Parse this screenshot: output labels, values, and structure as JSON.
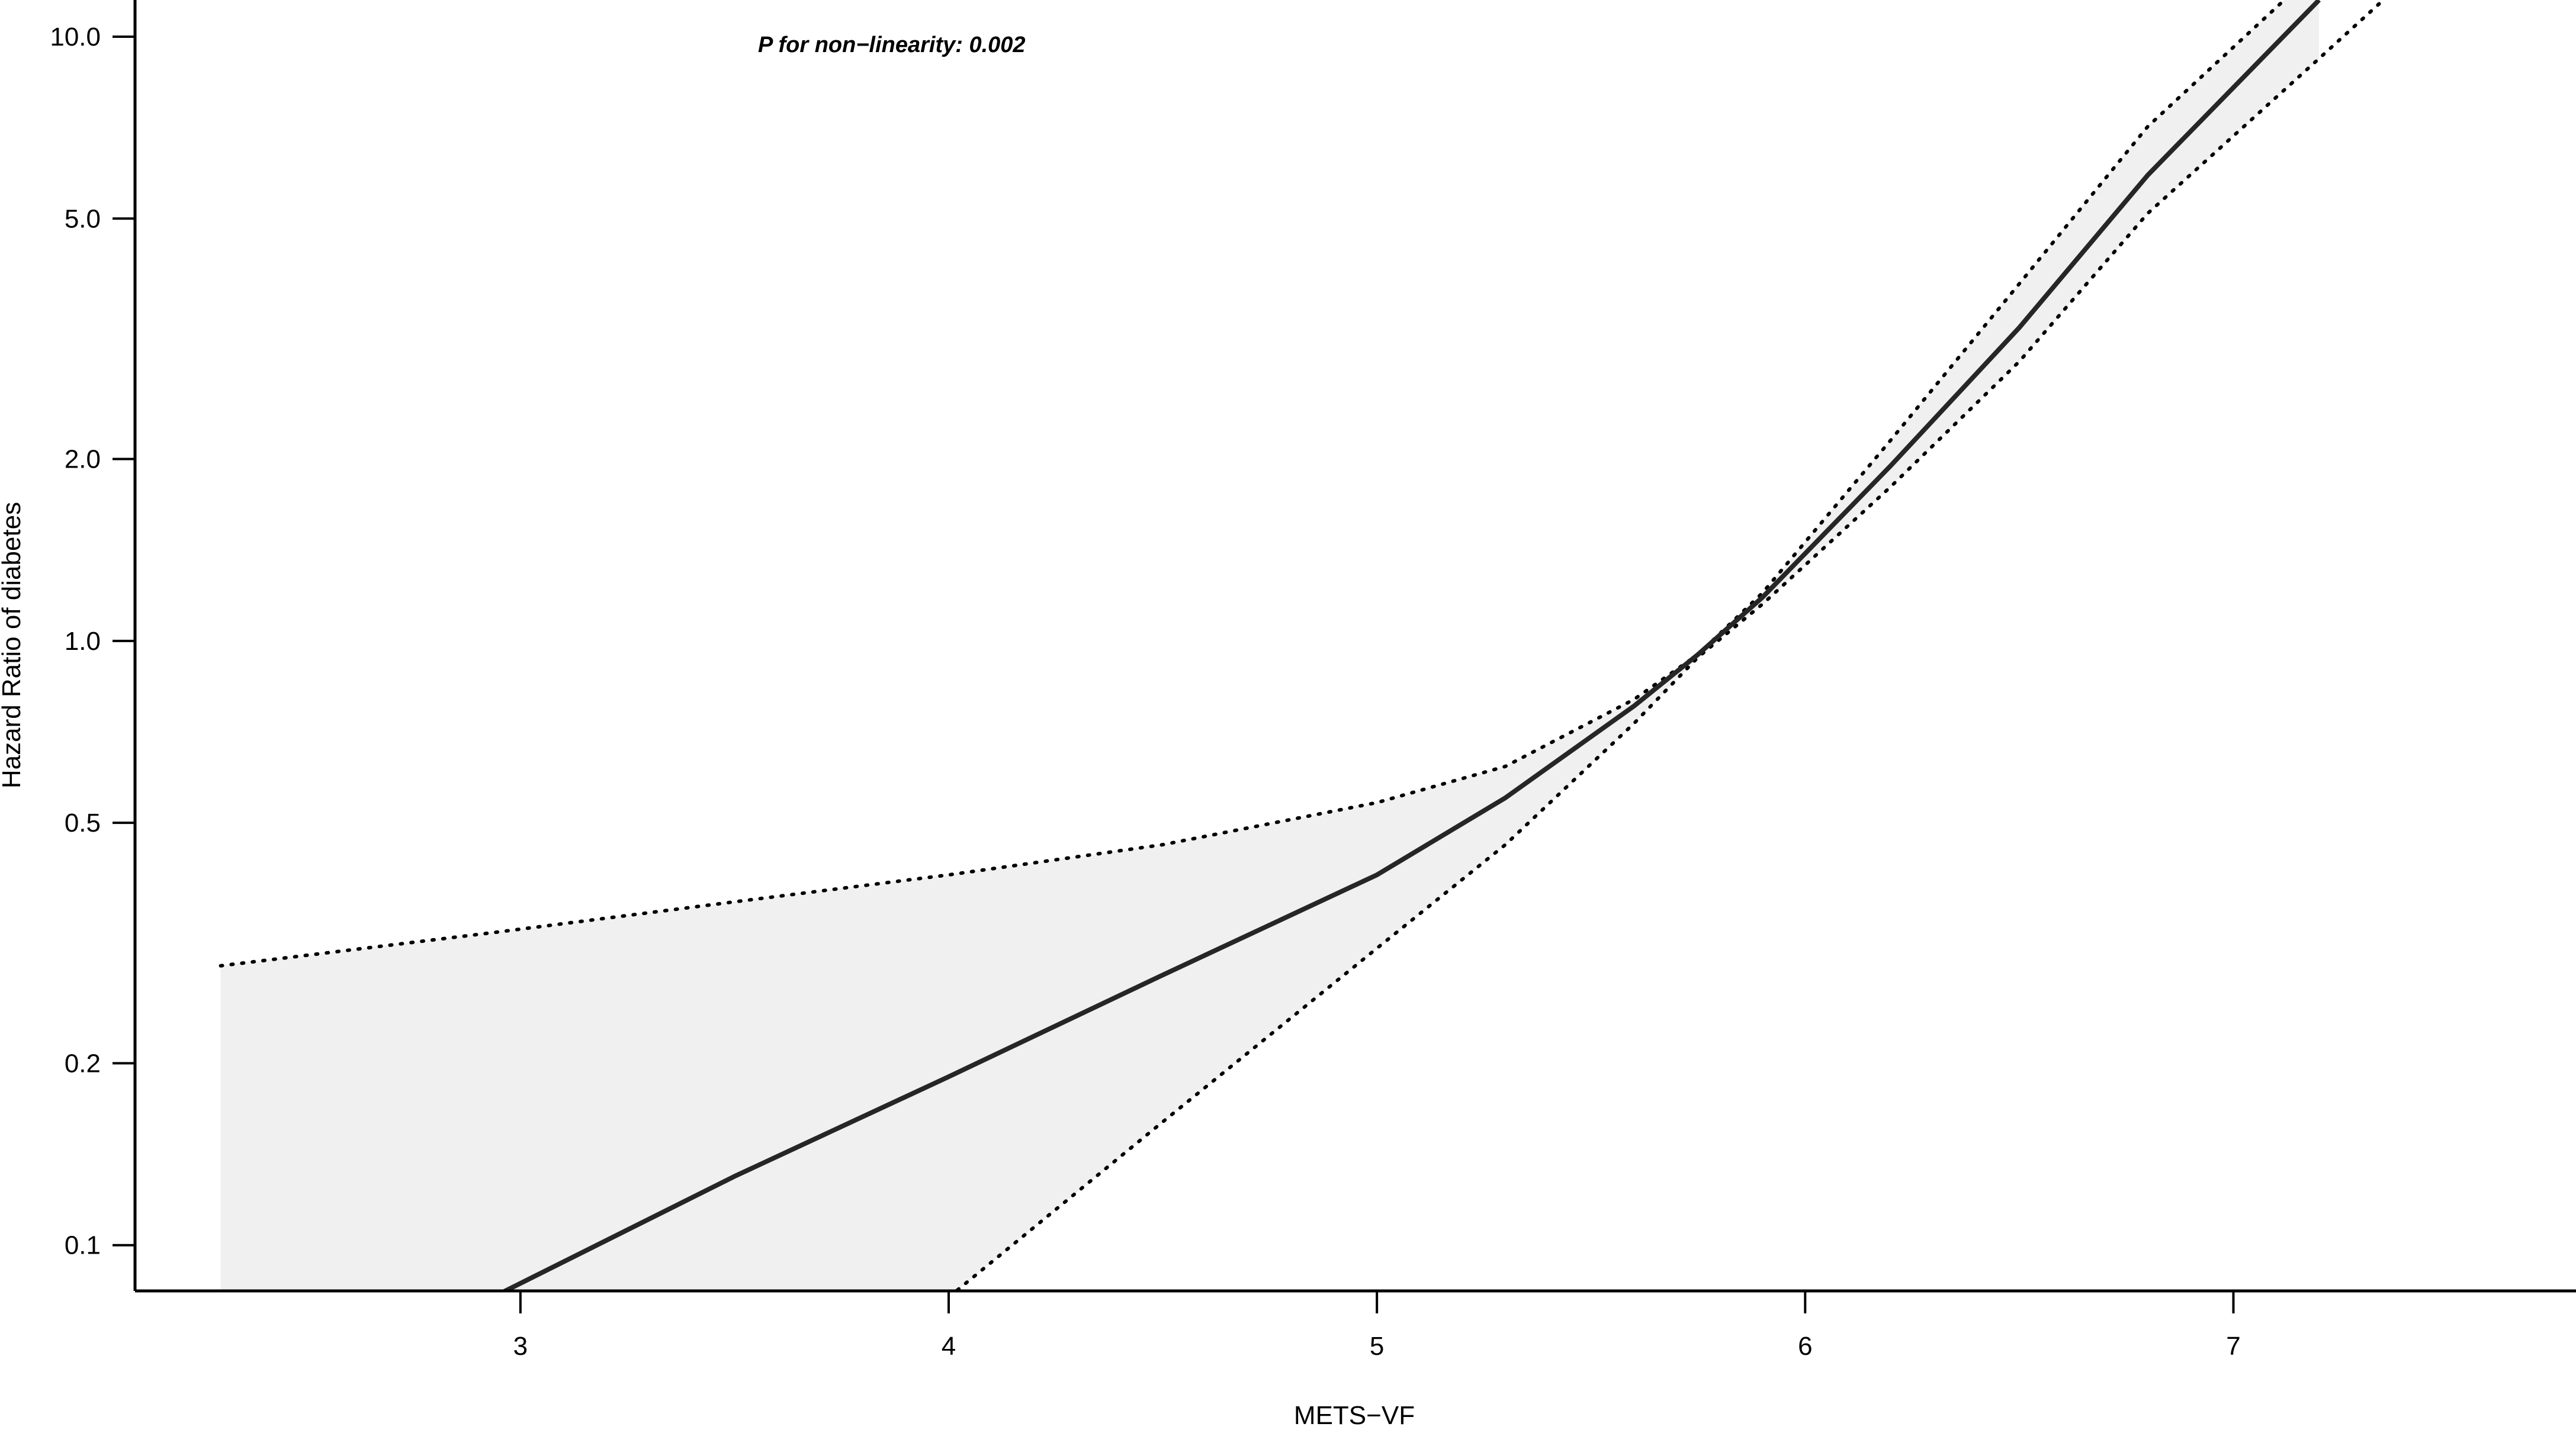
{
  "chart_data": {
    "type": "line",
    "title": "",
    "xlabel": "METS−VF",
    "ylabel": "Hazard Ratio of diabetes",
    "annotation": "P for non−linearity: 0.002",
    "x_scale": "linear",
    "y_scale": "log",
    "xlim": [
      2.1,
      7.8
    ],
    "ylim": [
      0.084,
      11.5
    ],
    "grid": false,
    "legend": "none",
    "x_ticks": [
      {
        "value": 3,
        "label": "3"
      },
      {
        "value": 4,
        "label": "4"
      },
      {
        "value": 5,
        "label": "5"
      },
      {
        "value": 6,
        "label": "6"
      },
      {
        "value": 7,
        "label": "7"
      }
    ],
    "y_ticks": [
      {
        "value": 0.1,
        "label": "0.1"
      },
      {
        "value": 0.2,
        "label": "0.2"
      },
      {
        "value": 0.5,
        "label": "0.5"
      },
      {
        "value": 1.0,
        "label": "1.0"
      },
      {
        "value": 2.0,
        "label": "2.0"
      },
      {
        "value": 5.0,
        "label": "5.0"
      },
      {
        "value": 10.0,
        "label": "10.0"
      }
    ],
    "x": [
      2.3,
      2.95,
      3.5,
      4.0,
      4.5,
      5.0,
      5.3,
      5.6,
      5.75,
      5.9,
      6.2,
      6.5,
      6.8,
      7.2,
      7.35
    ],
    "series": [
      {
        "role": "estimate",
        "style": "solid",
        "values": [
          null,
          0.083,
          0.13,
          0.19,
          0.28,
          0.41,
          0.55,
          0.78,
          0.95,
          1.18,
          1.95,
          3.3,
          5.9,
          11.5,
          null
        ]
      },
      {
        "role": "upper_ci",
        "style": "dotted",
        "values": [
          0.29,
          0.33,
          0.37,
          0.41,
          0.46,
          0.54,
          0.62,
          0.8,
          0.95,
          1.2,
          2.15,
          3.9,
          7.1,
          13.0,
          null
        ]
      },
      {
        "role": "lower_ci",
        "style": "dotted",
        "values": [
          null,
          null,
          null,
          0.082,
          0.16,
          0.31,
          0.46,
          0.73,
          0.94,
          1.15,
          1.8,
          2.9,
          5.1,
          9.2,
          11.5
        ]
      }
    ],
    "colors": {
      "estimate": "#262626",
      "ci_line": "#000000",
      "ci_fill": "#f0f0f0",
      "axis": "#000000"
    }
  }
}
